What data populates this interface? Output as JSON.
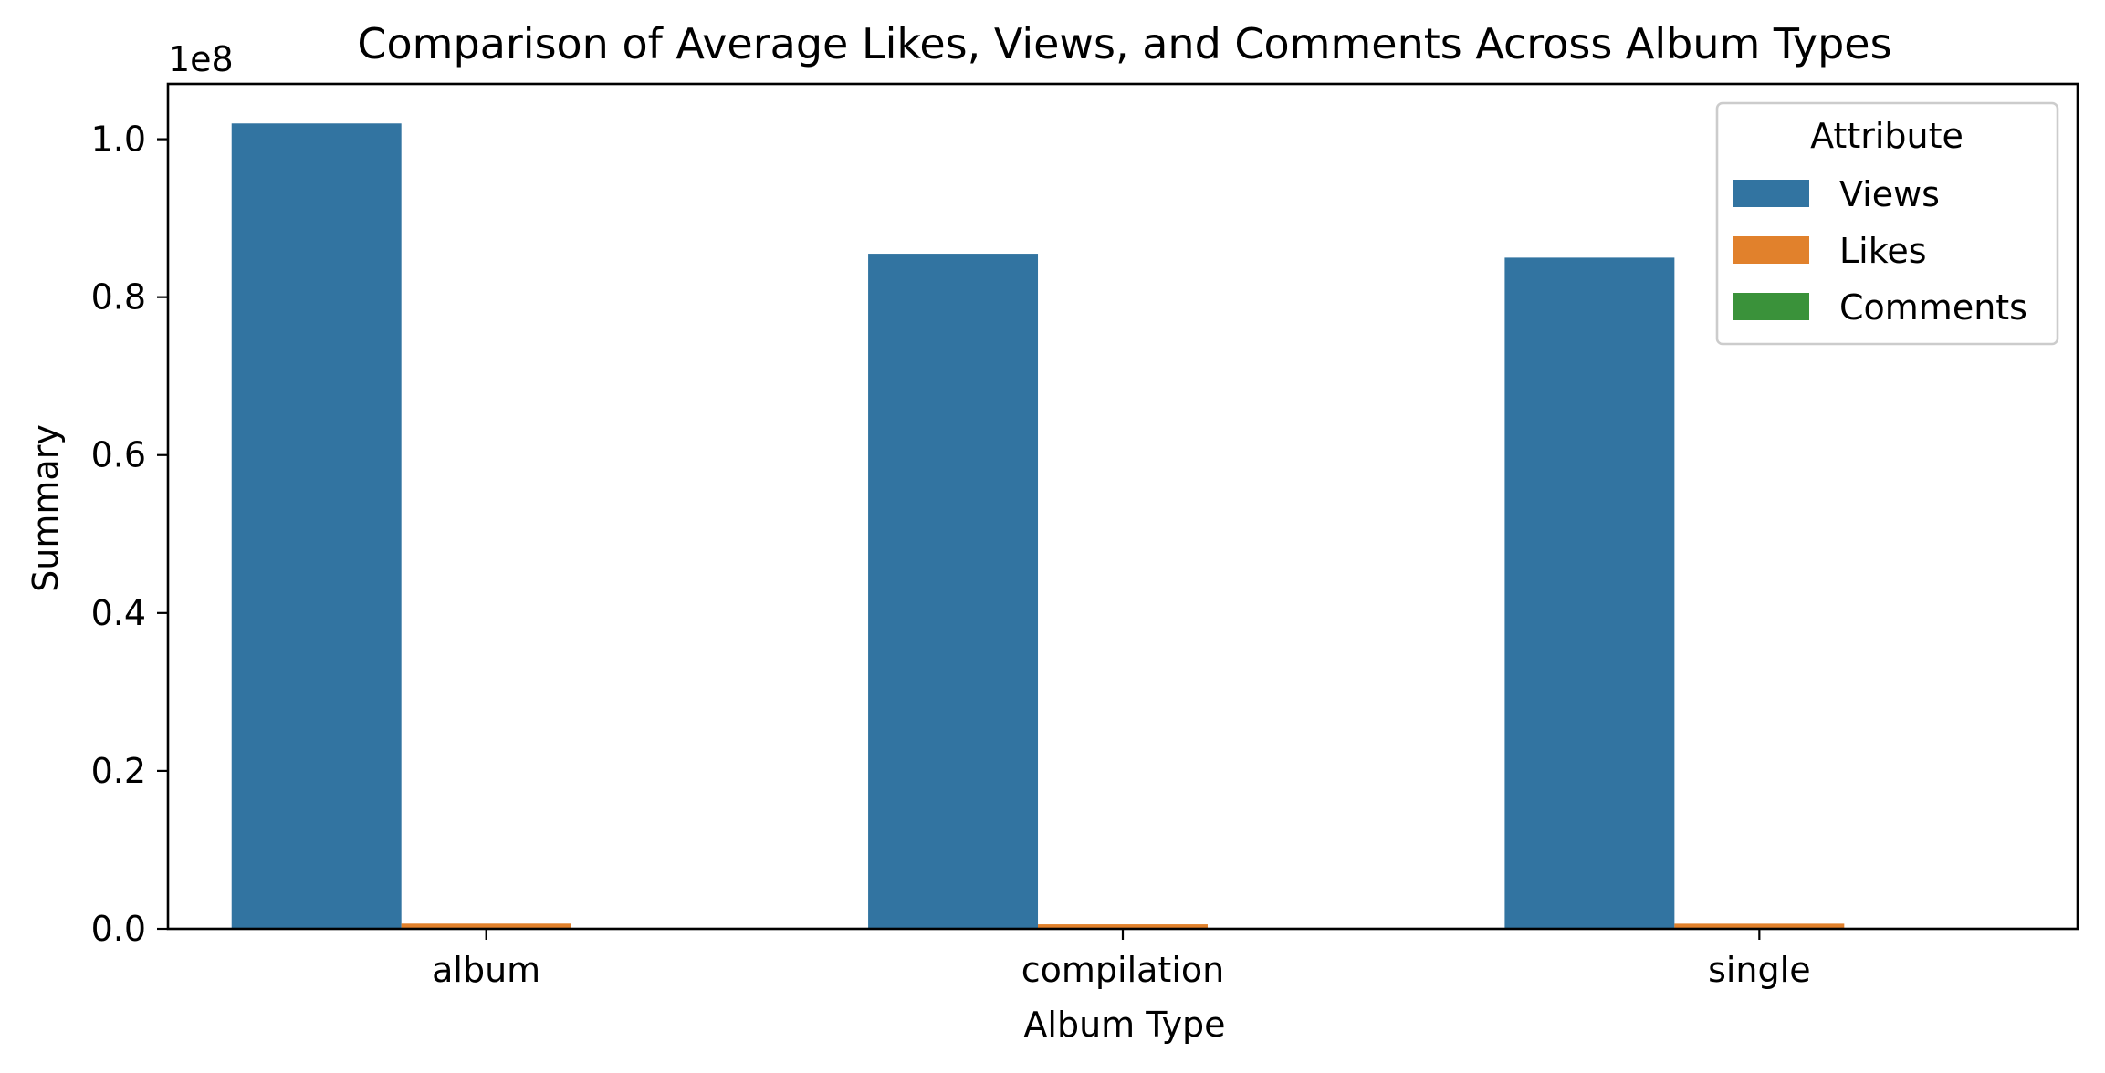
{
  "chart_data": {
    "type": "bar",
    "title": "Comparison of Average Likes, Views, and Comments Across Album Types",
    "xlabel": "Album Type",
    "ylabel": "Summary",
    "ylim": [
      0,
      1.07
    ],
    "y_scale_label": "1e8",
    "y_scale": 100000000,
    "yticks": [
      0.0,
      0.2,
      0.4,
      0.6,
      0.8,
      1.0
    ],
    "ytick_labels": [
      "0.0",
      "0.2",
      "0.4",
      "0.6",
      "0.8",
      "1.0"
    ],
    "categories": [
      "album",
      "compilation",
      "single"
    ],
    "legend_title": "Attribute",
    "legend_position": "top-right",
    "grid": false,
    "series": [
      {
        "name": "Views",
        "color": "#3274a1",
        "values": [
          1.02,
          0.855,
          0.85
        ]
      },
      {
        "name": "Likes",
        "color": "#e1812c",
        "values": [
          0.0066,
          0.0057,
          0.0065
        ]
      },
      {
        "name": "Comments",
        "color": "#3a923a",
        "values": [
          0.0002,
          0.0002,
          0.0002
        ]
      }
    ]
  }
}
